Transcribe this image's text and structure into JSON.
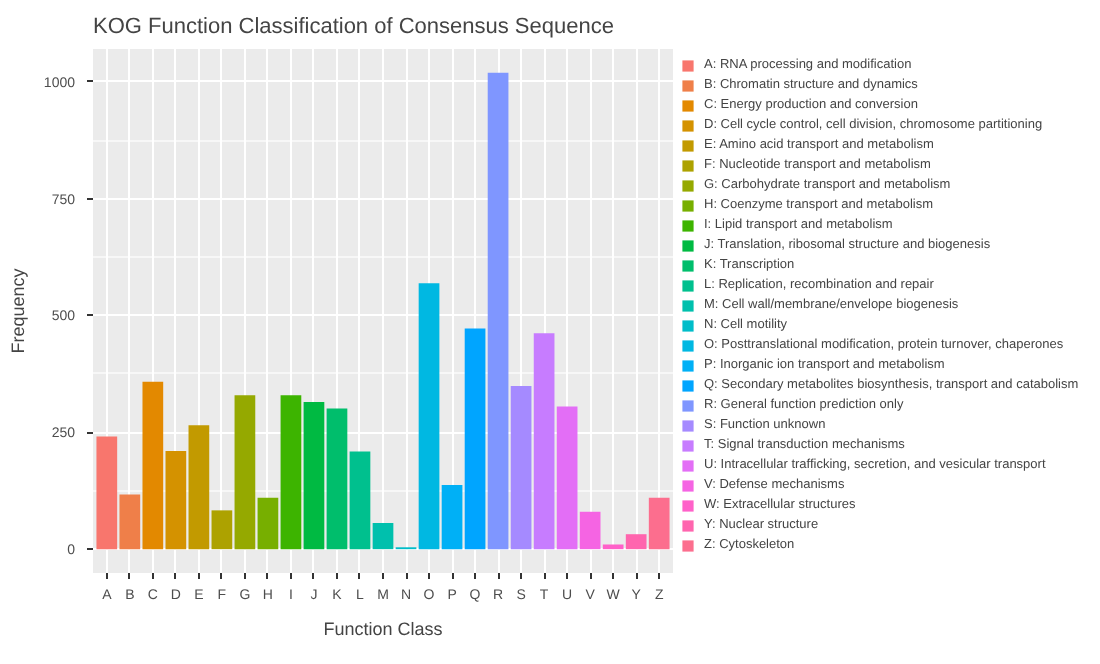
{
  "chart_data": {
    "type": "bar",
    "title": "KOG Function Classification of Consensus Sequence",
    "xlabel": "Function Class",
    "ylabel": "Frequency",
    "categories": [
      "A",
      "B",
      "C",
      "D",
      "E",
      "F",
      "G",
      "H",
      "I",
      "J",
      "K",
      "L",
      "M",
      "N",
      "O",
      "P",
      "Q",
      "R",
      "S",
      "T",
      "U",
      "V",
      "W",
      "Y",
      "Z"
    ],
    "series": [
      {
        "name": "A: RNA processing and modification",
        "color": "#F8766D",
        "values": [
          241,
          null,
          null,
          null,
          null,
          null,
          null,
          null,
          null,
          null,
          null,
          null,
          null,
          null,
          null,
          null,
          null,
          null,
          null,
          null,
          null,
          null,
          null,
          null,
          null
        ]
      },
      {
        "name": "B: Chromatin structure and dynamics",
        "color": "#EF7F49",
        "values": [
          null,
          117,
          null,
          null,
          null,
          null,
          null,
          null,
          null,
          null,
          null,
          null,
          null,
          null,
          null,
          null,
          null,
          null,
          null,
          null,
          null,
          null,
          null,
          null,
          null
        ]
      },
      {
        "name": "C: Energy production and conversion",
        "color": "#E38900",
        "values": [
          null,
          null,
          358,
          null,
          null,
          null,
          null,
          null,
          null,
          null,
          null,
          null,
          null,
          null,
          null,
          null,
          null,
          null,
          null,
          null,
          null,
          null,
          null,
          null,
          null
        ]
      },
      {
        "name": "D: Cell cycle control, cell division, chromosome partitioning",
        "color": "#D49200",
        "values": [
          null,
          null,
          null,
          210,
          null,
          null,
          null,
          null,
          null,
          null,
          null,
          null,
          null,
          null,
          null,
          null,
          null,
          null,
          null,
          null,
          null,
          null,
          null,
          null,
          null
        ]
      },
      {
        "name": "E: Amino acid transport and metabolism",
        "color": "#C29A00",
        "values": [
          null,
          null,
          null,
          null,
          265,
          null,
          null,
          null,
          null,
          null,
          null,
          null,
          null,
          null,
          null,
          null,
          null,
          null,
          null,
          null,
          null,
          null,
          null,
          null,
          null
        ]
      },
      {
        "name": "F: Nucleotide transport and metabolism",
        "color": "#ADA200",
        "values": [
          null,
          null,
          null,
          null,
          null,
          83,
          null,
          null,
          null,
          null,
          null,
          null,
          null,
          null,
          null,
          null,
          null,
          null,
          null,
          null,
          null,
          null,
          null,
          null,
          null
        ]
      },
      {
        "name": "G: Carbohydrate transport and metabolism",
        "color": "#95A900",
        "values": [
          null,
          null,
          null,
          null,
          null,
          null,
          329,
          null,
          null,
          null,
          null,
          null,
          null,
          null,
          null,
          null,
          null,
          null,
          null,
          null,
          null,
          null,
          null,
          null,
          null
        ]
      },
      {
        "name": "H: Coenzyme transport and metabolism",
        "color": "#77AF00",
        "values": [
          null,
          null,
          null,
          null,
          null,
          null,
          null,
          110,
          null,
          null,
          null,
          null,
          null,
          null,
          null,
          null,
          null,
          null,
          null,
          null,
          null,
          null,
          null,
          null,
          null
        ]
      },
      {
        "name": "I: Lipid transport and metabolism",
        "color": "#3DB400",
        "values": [
          null,
          null,
          null,
          null,
          null,
          null,
          null,
          null,
          329,
          null,
          null,
          null,
          null,
          null,
          null,
          null,
          null,
          null,
          null,
          null,
          null,
          null,
          null,
          null,
          null
        ]
      },
      {
        "name": "J: Translation, ribosomal structure and biogenesis",
        "color": "#00BA42",
        "values": [
          null,
          null,
          null,
          null,
          null,
          null,
          null,
          null,
          null,
          315,
          null,
          null,
          null,
          null,
          null,
          null,
          null,
          null,
          null,
          null,
          null,
          null,
          null,
          null,
          null
        ]
      },
      {
        "name": "K: Transcription",
        "color": "#00BE6C",
        "values": [
          null,
          null,
          null,
          null,
          null,
          null,
          null,
          null,
          null,
          null,
          301,
          null,
          null,
          null,
          null,
          null,
          null,
          null,
          null,
          null,
          null,
          null,
          null,
          null,
          null
        ]
      },
      {
        "name": "L: Replication, recombination and repair",
        "color": "#00C08E",
        "values": [
          null,
          null,
          null,
          null,
          null,
          null,
          null,
          null,
          null,
          null,
          null,
          209,
          null,
          null,
          null,
          null,
          null,
          null,
          null,
          null,
          null,
          null,
          null,
          null,
          null
        ]
      },
      {
        "name": "M: Cell wall/membrane/envelope biogenesis",
        "color": "#00C0AD",
        "values": [
          null,
          null,
          null,
          null,
          null,
          null,
          null,
          null,
          null,
          null,
          null,
          null,
          56,
          null,
          null,
          null,
          null,
          null,
          null,
          null,
          null,
          null,
          null,
          null,
          null
        ]
      },
      {
        "name": "N: Cell motility",
        "color": "#00BDC9",
        "values": [
          null,
          null,
          null,
          null,
          null,
          null,
          null,
          null,
          null,
          null,
          null,
          null,
          null,
          4,
          null,
          null,
          null,
          null,
          null,
          null,
          null,
          null,
          null,
          null,
          null
        ]
      },
      {
        "name": "O: Posttranslational modification, protein turnover, chaperones",
        "color": "#00B8E2",
        "values": [
          null,
          null,
          null,
          null,
          null,
          null,
          null,
          null,
          null,
          null,
          null,
          null,
          null,
          null,
          569,
          null,
          null,
          null,
          null,
          null,
          null,
          null,
          null,
          null,
          null
        ]
      },
      {
        "name": "P: Inorganic ion transport and metabolism",
        "color": "#00B0F6",
        "values": [
          null,
          null,
          null,
          null,
          null,
          null,
          null,
          null,
          null,
          null,
          null,
          null,
          null,
          null,
          null,
          137,
          null,
          null,
          null,
          null,
          null,
          null,
          null,
          null,
          null
        ]
      },
      {
        "name": "Q: Secondary metabolites biosynthesis, transport and catabolism",
        "color": "#00A5FF",
        "values": [
          null,
          null,
          null,
          null,
          null,
          null,
          null,
          null,
          null,
          null,
          null,
          null,
          null,
          null,
          null,
          null,
          472,
          null,
          null,
          null,
          null,
          null,
          null,
          null,
          null
        ]
      },
      {
        "name": "R: General function prediction only",
        "color": "#7F96FF",
        "values": [
          null,
          null,
          null,
          null,
          null,
          null,
          null,
          null,
          null,
          null,
          null,
          null,
          null,
          null,
          null,
          null,
          null,
          1019,
          null,
          null,
          null,
          null,
          null,
          null,
          null
        ]
      },
      {
        "name": "S: Function unknown",
        "color": "#A58AFF",
        "values": [
          null,
          null,
          null,
          null,
          null,
          null,
          null,
          null,
          null,
          null,
          null,
          null,
          null,
          null,
          null,
          null,
          null,
          null,
          349,
          null,
          null,
          null,
          null,
          null,
          null
        ]
      },
      {
        "name": "T: Signal transduction mechanisms",
        "color": "#C77CFF",
        "values": [
          null,
          null,
          null,
          null,
          null,
          null,
          null,
          null,
          null,
          null,
          null,
          null,
          null,
          null,
          null,
          null,
          null,
          null,
          null,
          462,
          null,
          null,
          null,
          null,
          null
        ]
      },
      {
        "name": "U: Intracellular trafficking, secretion, and vesicular transport",
        "color": "#E36EF6",
        "values": [
          null,
          null,
          null,
          null,
          null,
          null,
          null,
          null,
          null,
          null,
          null,
          null,
          null,
          null,
          null,
          null,
          null,
          null,
          null,
          null,
          305,
          null,
          null,
          null,
          null
        ]
      },
      {
        "name": "V: Defense mechanisms",
        "color": "#F564E3",
        "values": [
          null,
          null,
          null,
          null,
          null,
          null,
          null,
          null,
          null,
          null,
          null,
          null,
          null,
          null,
          null,
          null,
          null,
          null,
          null,
          null,
          null,
          80,
          null,
          null,
          null
        ]
      },
      {
        "name": "W: Extracellular structures",
        "color": "#FF61C9",
        "values": [
          null,
          null,
          null,
          null,
          null,
          null,
          null,
          null,
          null,
          null,
          null,
          null,
          null,
          null,
          null,
          null,
          null,
          null,
          null,
          null,
          null,
          null,
          10,
          null,
          null
        ]
      },
      {
        "name": "Y: Nuclear structure",
        "color": "#FF65AE",
        "values": [
          null,
          null,
          null,
          null,
          null,
          null,
          null,
          null,
          null,
          null,
          null,
          null,
          null,
          null,
          null,
          null,
          null,
          null,
          null,
          null,
          null,
          null,
          null,
          32,
          null
        ]
      },
      {
        "name": "Z: Cytoskeleton",
        "color": "#FC6E8E",
        "values": [
          null,
          null,
          null,
          null,
          null,
          null,
          null,
          null,
          null,
          null,
          null,
          null,
          null,
          null,
          null,
          null,
          null,
          null,
          null,
          null,
          null,
          null,
          null,
          null,
          110
        ]
      }
    ],
    "ylim": [
      -51,
      1070
    ],
    "yticks": [
      0,
      250,
      500,
      750,
      1000
    ],
    "grid": true,
    "legend": "right"
  }
}
